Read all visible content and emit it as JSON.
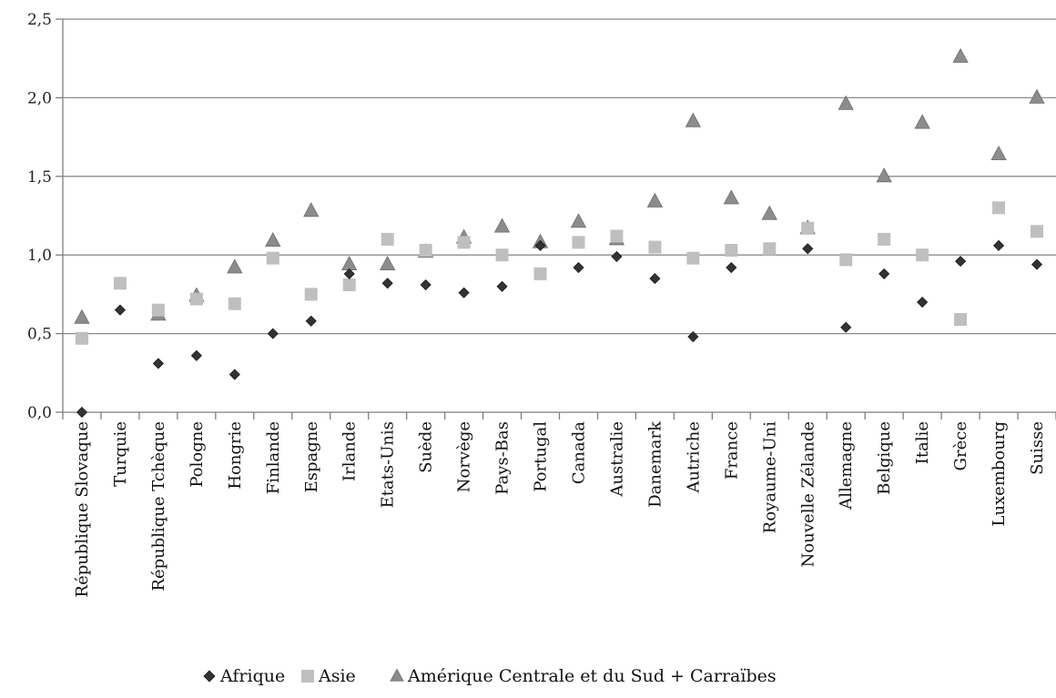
{
  "chart_data": {
    "type": "scatter",
    "title": "",
    "xlabel": "",
    "ylabel": "",
    "ylim": [
      0,
      2.5
    ],
    "yticks": [
      "0,0",
      "0,5",
      "1,0",
      "1,5",
      "2,0",
      "2,5"
    ],
    "grid": true,
    "legend_position": "bottom",
    "categories": [
      "République Slovaque",
      "Turquie",
      "République Tchèque",
      "Pologne",
      "Hongrie",
      "Finlande",
      "Espagne",
      "Irlande",
      "Etats-Unis",
      "Suède",
      "Norvège",
      "Pays-Bas",
      "Portugal",
      "Canada",
      "Australie",
      "Danemark",
      "Autriche",
      "France",
      "Royaume-Uni",
      "Nouvelle Zélande",
      "Allemagne",
      "Belgique",
      "Italie",
      "Grèce",
      "Luxembourg",
      "Suisse"
    ],
    "series": [
      {
        "name": "Afrique",
        "marker": "diamond",
        "color": "#333333",
        "values": [
          0.0,
          0.65,
          0.31,
          0.36,
          0.24,
          0.5,
          0.58,
          0.88,
          0.82,
          0.81,
          0.76,
          0.8,
          1.06,
          0.92,
          0.99,
          0.85,
          0.48,
          0.92,
          null,
          1.04,
          0.54,
          0.88,
          0.7,
          0.96,
          1.06,
          0.94
        ]
      },
      {
        "name": "Asie",
        "marker": "square",
        "color": "#bfbfbf",
        "values": [
          0.47,
          0.82,
          0.65,
          0.72,
          0.69,
          0.98,
          0.75,
          0.81,
          1.1,
          1.03,
          1.08,
          1.0,
          0.88,
          1.08,
          1.12,
          1.05,
          0.98,
          1.03,
          1.04,
          1.17,
          0.97,
          1.1,
          1.0,
          0.59,
          1.3,
          1.15
        ]
      },
      {
        "name": "Amérique Centrale et du Sud + Carraïbes",
        "marker": "triangle",
        "color": "#8c8c8c",
        "values": [
          0.6,
          null,
          0.62,
          0.74,
          0.92,
          1.09,
          1.28,
          0.94,
          0.94,
          1.02,
          1.11,
          1.18,
          1.08,
          1.21,
          1.1,
          1.34,
          1.85,
          1.36,
          1.26,
          1.17,
          1.96,
          1.5,
          1.84,
          2.26,
          1.64,
          2.0
        ]
      }
    ]
  }
}
